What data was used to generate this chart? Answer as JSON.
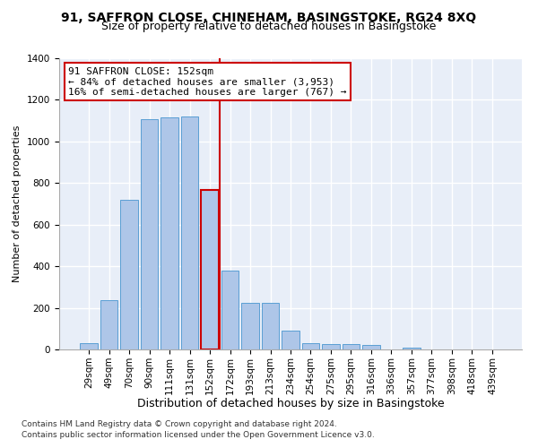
{
  "title1": "91, SAFFRON CLOSE, CHINEHAM, BASINGSTOKE, RG24 8XQ",
  "title2": "Size of property relative to detached houses in Basingstoke",
  "xlabel": "Distribution of detached houses by size in Basingstoke",
  "ylabel": "Number of detached properties",
  "annotation_line1": "91 SAFFRON CLOSE: 152sqm",
  "annotation_line2": "← 84% of detached houses are smaller (3,953)",
  "annotation_line3": "16% of semi-detached houses are larger (767) →",
  "footnote1": "Contains HM Land Registry data © Crown copyright and database right 2024.",
  "footnote2": "Contains public sector information licensed under the Open Government Licence v3.0.",
  "bar_labels": [
    "29sqm",
    "49sqm",
    "70sqm",
    "90sqm",
    "111sqm",
    "131sqm",
    "152sqm",
    "172sqm",
    "193sqm",
    "213sqm",
    "234sqm",
    "254sqm",
    "275sqm",
    "295sqm",
    "316sqm",
    "336sqm",
    "357sqm",
    "377sqm",
    "398sqm",
    "418sqm",
    "439sqm"
  ],
  "bar_values": [
    30,
    235,
    720,
    1105,
    1115,
    1120,
    765,
    380,
    225,
    225,
    90,
    30,
    25,
    25,
    20,
    0,
    10,
    0,
    0,
    0,
    0
  ],
  "bar_color": "#aec6e8",
  "bar_edge_color": "#5a9fd4",
  "highlight_index": 6,
  "highlight_color": "#cc0000",
  "ylim": [
    0,
    1400
  ],
  "yticks": [
    0,
    200,
    400,
    600,
    800,
    1000,
    1200,
    1400
  ],
  "bg_color": "#e8eef8",
  "grid_color": "#ffffff",
  "annotation_box_color": "#ffffff",
  "annotation_border_color": "#cc0000",
  "title_fontsize": 10,
  "subtitle_fontsize": 9,
  "xlabel_fontsize": 9,
  "ylabel_fontsize": 8,
  "tick_fontsize": 7.5,
  "annotation_fontsize": 8,
  "footnote_fontsize": 6.5
}
